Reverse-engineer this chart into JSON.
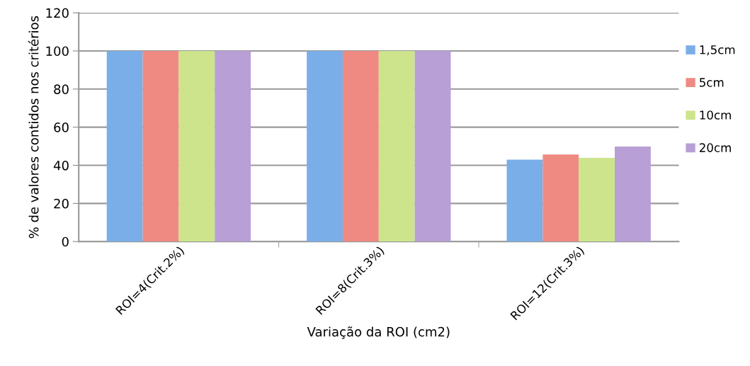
{
  "chart_data": {
    "type": "bar",
    "xlabel": "Variação da ROI (cm2)",
    "ylabel": "% de valores contidos nos critérios",
    "categories": [
      "ROI=4(Crit.2%)",
      "ROI=8(Crit.3%)",
      "ROI=12(Crit.3%)"
    ],
    "series": [
      {
        "name": "1,5cm",
        "color": "#7aaee9",
        "values": [
          100,
          100,
          43
        ]
      },
      {
        "name": "5cm",
        "color": "#ee8a82",
        "values": [
          100,
          100,
          45.7
        ]
      },
      {
        "name": "10cm",
        "color": "#cde48c",
        "values": [
          100,
          100,
          43.9
        ]
      },
      {
        "name": "20cm",
        "color": "#b89fd6",
        "values": [
          100,
          100,
          49.8
        ]
      }
    ],
    "ylim": [
      0,
      120
    ],
    "yticks": [
      0,
      20,
      40,
      60,
      80,
      100,
      120
    ],
    "grid": "y",
    "legend": "right"
  }
}
